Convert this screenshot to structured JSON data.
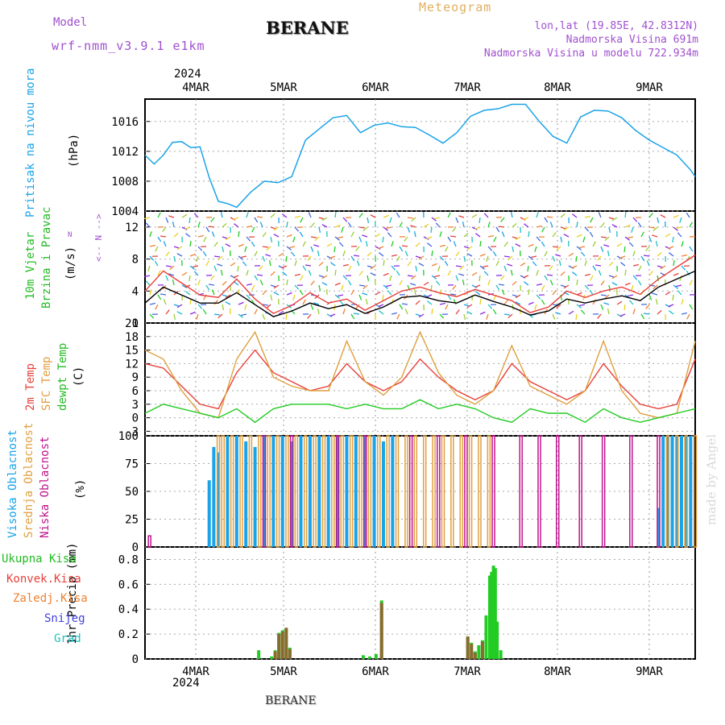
{
  "header": {
    "model_label": "Model",
    "model_value": "wrf-nmm_v3.9.1  e1km",
    "title": "BERANE",
    "meteogram_label": "Meteogram",
    "lonlat": "lon,lat (19.85E, 42.8312N)",
    "elevation": "Nadmorska Visina 691m",
    "model_elevation": "Nadmorska Visina u modelu 722.934m",
    "footer": "BERANE",
    "watermark": "made by Angel",
    "year_top": "2024",
    "year_bottom": "2024"
  },
  "colors": {
    "pressure": "#1aa3e8",
    "t2m": "#e8403a",
    "sfc": "#e0a040",
    "dewpt": "#22cc22",
    "high_cloud": "#1aa3e8",
    "mid_cloud": "#e0a040",
    "low_cloud": "#c0148c",
    "total_precip": "#22cc22",
    "conv_precip": "#e8403a",
    "frozen_precip": "#f08030",
    "snow": "#4040e0",
    "hail": "#20c0c0",
    "model_purple": "#a050d0"
  },
  "chart_data": [
    {
      "type": "line",
      "panel": "pressure",
      "ylabel_line1": "Pritisak na nivou mora",
      "ylabel_unit": "(hPa)",
      "ylim": [
        1004,
        1019
      ],
      "yticks": [
        "1004",
        "1008",
        "1012",
        "1016"
      ],
      "series": [
        {
          "x": [
            0,
            0.1,
            0.2,
            0.3,
            0.4,
            0.5,
            0.6,
            0.7,
            0.8,
            0.9,
            1.0,
            1.15,
            1.3,
            1.45,
            1.6,
            1.75,
            1.9,
            2.05,
            2.2,
            2.35,
            2.5,
            2.65,
            2.8,
            2.95,
            3.1,
            3.25,
            3.4,
            3.55,
            3.7,
            3.85,
            4.0,
            4.15,
            4.3,
            4.45,
            4.6,
            4.75,
            4.9,
            5.05,
            5.2,
            5.35,
            5.5,
            5.65,
            5.8,
            5.95,
            6.0
          ],
          "values": [
            1011.5,
            1010.3,
            1011.5,
            1013.2,
            1013.3,
            1012.5,
            1012.6,
            1008.5,
            1005.3,
            1005,
            1004.5,
            1006.5,
            1008,
            1007.8,
            1008.6,
            1013.5,
            1015,
            1016.5,
            1016.8,
            1014.5,
            1015.5,
            1015.8,
            1015.3,
            1015.2,
            1014.2,
            1013.1,
            1014.5,
            1016.7,
            1017.5,
            1017.7,
            1018.3,
            1018.3,
            1016,
            1014,
            1013.1,
            1016.6,
            1017.5,
            1017.4,
            1016.5,
            1014.8,
            1013.5,
            1012.5,
            1011.5,
            1009.5,
            1008.6
          ]
        }
      ]
    },
    {
      "type": "line",
      "panel": "wind",
      "ylabel_line1": "10m Vjetar",
      "ylabel_line2": "Brzina i Pravac",
      "ylabel_unit": "(m/s)",
      "compass": "N",
      "ylim": [
        0,
        14
      ],
      "yticks": [
        "0",
        "4",
        "8",
        "12"
      ],
      "series": [
        {
          "name": "speed",
          "x": [
            0,
            0.2,
            0.4,
            0.6,
            0.8,
            1.0,
            1.2,
            1.4,
            1.6,
            1.8,
            2.0,
            2.2,
            2.4,
            2.6,
            2.8,
            3.0,
            3.2,
            3.4,
            3.6,
            3.8,
            4.0,
            4.2,
            4.4,
            4.6,
            4.8,
            5.0,
            5.2,
            5.4,
            5.6,
            5.8,
            6.0
          ],
          "values": [
            2.5,
            4.5,
            3.5,
            2.5,
            2.5,
            3.8,
            2.3,
            0.8,
            1.5,
            2.5,
            1.8,
            2.3,
            1.2,
            2.0,
            3.2,
            3.4,
            2.8,
            2.5,
            3.5,
            2.7,
            2.0,
            1.0,
            1.5,
            3.0,
            2.5,
            3.0,
            3.4,
            2.8,
            4.5,
            5.5,
            6.5
          ]
        },
        {
          "name": "gust",
          "x": [
            0,
            0.2,
            0.4,
            0.6,
            0.8,
            1.0,
            1.2,
            1.4,
            1.6,
            1.8,
            2.0,
            2.2,
            2.4,
            2.6,
            2.8,
            3.0,
            3.2,
            3.4,
            3.6,
            3.8,
            4.0,
            4.2,
            4.4,
            4.6,
            4.8,
            5.0,
            5.2,
            5.4,
            5.6,
            5.8,
            6.0
          ],
          "values": [
            4.0,
            6.5,
            5.0,
            3.5,
            3.2,
            5.5,
            3.0,
            1.2,
            2.2,
            3.8,
            2.5,
            3.0,
            1.6,
            2.8,
            4.0,
            4.5,
            3.8,
            3.3,
            4.2,
            3.5,
            2.8,
            1.3,
            2.0,
            4.0,
            3.2,
            4.0,
            4.5,
            3.6,
            5.5,
            7.0,
            8.5
          ]
        }
      ]
    },
    {
      "type": "line",
      "panel": "temperature",
      "ylabel_t2m": "2m Temp",
      "ylabel_sfc": "SFC Temp",
      "ylabel_dew": "dewpt Temp",
      "ylabel_unit": "(C)",
      "ylim": [
        -4,
        21
      ],
      "yticks": [
        "-3",
        "0",
        "3",
        "6",
        "9",
        "12",
        "15",
        "18",
        "21"
      ],
      "series": [
        {
          "name": "2m Temp",
          "x": [
            0,
            0.2,
            0.4,
            0.6,
            0.8,
            1.0,
            1.2,
            1.4,
            1.6,
            1.8,
            2.0,
            2.2,
            2.4,
            2.6,
            2.8,
            3.0,
            3.2,
            3.4,
            3.6,
            3.8,
            4.0,
            4.2,
            4.4,
            4.6,
            4.8,
            5.0,
            5.2,
            5.4,
            5.6,
            5.8,
            6.0
          ],
          "values": [
            12,
            11,
            7,
            3,
            2,
            10,
            15,
            10,
            8,
            6,
            7,
            12,
            8,
            6,
            8,
            13,
            9,
            6,
            4,
            6,
            12,
            8,
            6,
            4,
            6,
            12,
            7,
            3,
            2,
            3,
            13
          ]
        },
        {
          "name": "SFC Temp",
          "x": [
            0,
            0.2,
            0.4,
            0.6,
            0.8,
            1.0,
            1.2,
            1.4,
            1.6,
            1.8,
            2.0,
            2.2,
            2.4,
            2.6,
            2.8,
            3.0,
            3.2,
            3.4,
            3.6,
            3.8,
            4.0,
            4.2,
            4.4,
            4.6,
            4.8,
            5.0,
            5.2,
            5.4,
            5.6,
            5.8,
            6.0
          ],
          "values": [
            15,
            13,
            6,
            1,
            0,
            13,
            19,
            9,
            7,
            6,
            6,
            17,
            8,
            5,
            9,
            19,
            10,
            5,
            3,
            6,
            16,
            7,
            5,
            3,
            6,
            17,
            6,
            1,
            0,
            1,
            17
          ]
        },
        {
          "name": "dewpt Temp",
          "x": [
            0,
            0.2,
            0.4,
            0.6,
            0.8,
            1.0,
            1.2,
            1.4,
            1.6,
            1.8,
            2.0,
            2.2,
            2.4,
            2.6,
            2.8,
            3.0,
            3.2,
            3.4,
            3.6,
            3.8,
            4.0,
            4.2,
            4.4,
            4.6,
            4.8,
            5.0,
            5.2,
            5.4,
            5.6,
            5.8,
            6.0
          ],
          "values": [
            1,
            3,
            2,
            1,
            0,
            2,
            -1,
            2,
            3,
            3,
            3,
            2,
            3,
            2,
            2,
            4,
            2,
            3,
            2,
            0,
            -1,
            2,
            1,
            1,
            -1,
            2,
            0,
            -1,
            0,
            1,
            2
          ]
        }
      ]
    },
    {
      "type": "bar",
      "panel": "cloud",
      "ylabel_high": "Visoka Oblacnost",
      "ylabel_mid": "Srednja Oblacnost",
      "ylabel_low": "Niska  Oblacnost",
      "ylabel_unit": "(%)",
      "ylim": [
        0,
        100
      ],
      "yticks": [
        "0",
        "25",
        "50",
        "75",
        "100"
      ],
      "series": [
        {
          "name": "Visoka Oblacnost",
          "x": [
            0.7,
            0.75,
            0.8,
            0.9,
            1.0,
            1.1,
            1.2,
            1.3,
            1.4,
            1.5,
            1.6,
            1.7,
            1.8,
            1.9,
            2.0,
            2.1,
            2.2,
            2.3,
            2.4,
            2.5,
            2.6,
            2.7,
            5.6,
            5.65,
            5.7,
            5.75,
            5.8,
            5.85,
            5.9,
            5.95
          ],
          "values": [
            60,
            90,
            85,
            100,
            100,
            95,
            90,
            100,
            100,
            100,
            95,
            100,
            100,
            100,
            100,
            100,
            100,
            100,
            100,
            100,
            95,
            100,
            35,
            100,
            100,
            100,
            100,
            100,
            100,
            100
          ]
        },
        {
          "name": "Srednja Oblacnost",
          "x": [
            0.8,
            0.85,
            0.95,
            1.05,
            1.15,
            1.25,
            1.35,
            1.45,
            1.55,
            1.65,
            1.75,
            1.85,
            1.95,
            2.05,
            2.15,
            2.25,
            2.35,
            2.45,
            2.55,
            2.65,
            2.75,
            2.85,
            2.95,
            3.05,
            3.15,
            3.25,
            3.35,
            3.45,
            3.55,
            3.65,
            3.75,
            5.7,
            5.8,
            5.9,
            6.0
          ],
          "values": [
            100,
            100,
            100,
            100,
            100,
            100,
            100,
            100,
            100,
            100,
            100,
            100,
            100,
            100,
            100,
            100,
            100,
            100,
            100,
            100,
            100,
            100,
            100,
            100,
            100,
            100,
            100,
            100,
            100,
            100,
            100,
            100,
            100,
            100,
            100
          ]
        },
        {
          "name": "Niska  Oblacnost",
          "x": [
            0.05,
            1.3,
            1.6,
            2.1,
            2.4,
            2.9,
            3.2,
            3.5,
            3.8,
            4.1,
            4.3,
            4.5,
            4.75,
            5.0,
            5.3,
            5.6
          ],
          "values": [
            10,
            100,
            100,
            100,
            100,
            100,
            100,
            100,
            100,
            100,
            100,
            100,
            100,
            100,
            100,
            100
          ]
        }
      ]
    },
    {
      "type": "bar",
      "panel": "precip",
      "legend": [
        "Ukupna  Kisa",
        "Konvek.Kisa",
        "Zaledj.Kisa",
        "Snijeg",
        "Grad"
      ],
      "ylabel_unit": "1hr Precip (mm)",
      "ylim": [
        0,
        0.9
      ],
      "yticks": [
        "0",
        "0.2",
        "0.4",
        "0.6",
        "0.8"
      ],
      "series": [
        {
          "name": "Ukupna  Kisa",
          "x": [
            1.24,
            1.38,
            1.42,
            1.46,
            1.5,
            1.54,
            1.58,
            2.38,
            2.45,
            2.52,
            2.58,
            3.52,
            3.56,
            3.6,
            3.64,
            3.68,
            3.72,
            3.76,
            3.78,
            3.8,
            3.82,
            3.84,
            3.88
          ],
          "values": [
            0.07,
            0.02,
            0.07,
            0.21,
            0.23,
            0.25,
            0.09,
            0.03,
            0.02,
            0.04,
            0.47,
            0.18,
            0.13,
            0.06,
            0.11,
            0.15,
            0.35,
            0.67,
            0.7,
            0.75,
            0.73,
            0.3,
            0.07
          ]
        },
        {
          "name": "Konvek.Kisa",
          "x": [
            1.42,
            1.46,
            1.5,
            1.54,
            1.58,
            2.58,
            3.52,
            3.56,
            3.6,
            3.68
          ],
          "values": [
            0.06,
            0.2,
            0.22,
            0.25,
            0.08,
            0.45,
            0.18,
            0.12,
            0.05,
            0.14
          ]
        }
      ]
    }
  ],
  "axis": {
    "dates": [
      "4MAR",
      "5MAR",
      "6MAR",
      "7MAR",
      "8MAR",
      "9MAR"
    ]
  }
}
